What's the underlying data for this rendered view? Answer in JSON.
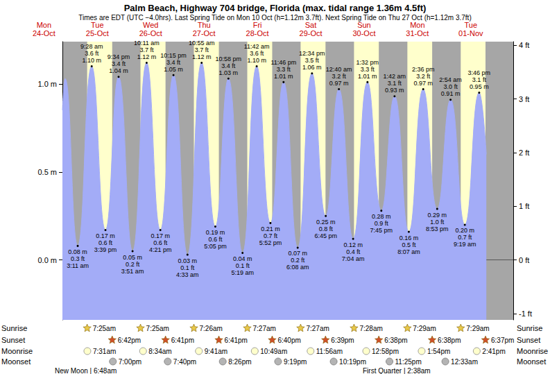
{
  "chart_data": {
    "type": "area",
    "title": "Palm Beach, Highway 704 bridge, Florida (max. tidal range 1.36m 4.5ft)",
    "subtitle": "Times are EDT (UTC −4.0hrs). Last Spring Tide on Mon 10 Oct (h=1.12m 3.7ft). Next Spring Tide on Thu 27 Oct (h=1.12m 3.7ft)",
    "day_labels": [
      "Mon\n24-Oct",
      "Tue\n25-Oct",
      "Wed\n26-Oct",
      "Thu\n27-Oct",
      "Fri\n28-Oct",
      "Sat\n29-Oct",
      "Sun\n30-Oct",
      "Mon\n31-Oct",
      "Tue\n01-Nov"
    ],
    "color": "#a3acf7",
    "x": [
      20.3,
      21.5,
      27.18,
      33.47,
      39.65,
      45.57,
      51.85,
      58.18,
      64.35,
      70.25,
      76.55,
      82.92,
      89.08,
      94.97,
      101.32,
      107.7,
      113.87,
      119.77,
      126.13,
      132.57,
      138.75,
      144.67,
      151.07,
      157.53,
      163.75,
      169.7,
      176.12,
      182.6,
      188.88,
      194.9,
      201.32,
      207.77,
      211.0
    ],
    "values": [
      0.85,
      1.03,
      0.08,
      1.1,
      0.17,
      1.04,
      0.05,
      1.12,
      0.17,
      1.05,
      0.03,
      1.12,
      0.19,
      1.03,
      0.04,
      1.1,
      0.21,
      1.01,
      0.07,
      1.06,
      0.25,
      0.97,
      0.12,
      1.01,
      0.28,
      0.93,
      0.16,
      0.97,
      0.29,
      0.91,
      0.2,
      0.95,
      0.6
    ],
    "value_labels": [
      null,
      null,
      "0.08 m",
      "1.10 m",
      "0.17 m",
      "1.04 m",
      "0.05 m",
      "1.12 m",
      "0.17 m",
      "1.05 m",
      "0.03 m",
      "1.12 m",
      "0.19 m",
      "1.03 m",
      "0.04 m",
      "1.10 m",
      "0.21 m",
      "1.01 m",
      "0.07 m",
      "1.06 m",
      "0.25 m",
      "0.97 m",
      "0.12 m",
      "1.01 m",
      "0.28 m",
      "0.93 m",
      "0.16 m",
      "0.97 m",
      "0.29 m",
      "0.91 m",
      "0.20 m",
      "0.95 m",
      null
    ],
    "feet_labels": [
      null,
      null,
      "0.3 ft",
      "3.6 ft",
      "0.6 ft",
      "3.4 ft",
      "0.2 ft",
      "3.7 ft",
      "0.6 ft",
      "3.4 ft",
      "0.1 ft",
      "3.7 ft",
      "0.6 ft",
      "3.4 ft",
      "0.1 ft",
      "3.6 ft",
      "0.7 ft",
      "3.3 ft",
      "0.2 ft",
      "3.5 ft",
      "0.8 ft",
      "3.2 ft",
      "0.4 ft",
      "3.3 ft",
      "0.9 ft",
      "3.1 ft",
      "0.5 ft",
      "3.2 ft",
      "1.0 ft",
      "3.0 ft",
      "0.7 ft",
      "3.1 ft",
      null
    ],
    "time_labels": [
      null,
      null,
      "3:11 am",
      "9:28 am",
      "3:39 pm",
      "9:34 pm",
      "3:51 am",
      "10:11 am",
      "4:21 pm",
      "10:15 pm",
      "4:33 am",
      "10:55 am",
      "5:05 pm",
      "10:58 pm",
      "5:19 am",
      "11:42 am",
      "5:52 pm",
      "11:46 pm",
      "6:08 am",
      "12:34 pm",
      "6:45 pm",
      "12:40 am",
      "7:04 am",
      "1:32 pm",
      "7:45 pm",
      "1:42 am",
      "8:07 am",
      "2:36 pm",
      "8:53 pm",
      "2:54 am",
      "9:19 am",
      "3:46 pm",
      null
    ],
    "data_labels": true,
    "tick_labels": "y",
    "xlim": [
      20.3,
      223.1
    ],
    "ylim": [
      -0.34,
      1.24
    ],
    "yticks": [
      {
        "value": 0,
        "label": "0.0 m"
      },
      {
        "value": 0.5,
        "label": "0.5 m"
      },
      {
        "value": 1,
        "label": "1.0 m"
      }
    ],
    "y2lim": [
      -1.115,
      4.068
    ],
    "y2ticks": [
      {
        "value": -1,
        "label": "-1 ft"
      },
      {
        "value": 0,
        "label": "0 ft"
      },
      {
        "value": 1,
        "label": "1 ft"
      },
      {
        "value": 2,
        "label": "2 ft"
      },
      {
        "value": 3,
        "label": "3 ft"
      },
      {
        "value": 4,
        "label": "4 ft"
      }
    ],
    "sun_moon": [
      {
        "name": "Sunrise",
        "x": [
          31.42,
          55.42,
          79.43,
          103.45,
          127.45,
          151.47,
          175.48,
          199.48
        ],
        "labels": [
          "7:25am",
          "7:25am",
          "7:26am",
          "7:27am",
          "7:27am",
          "7:28am",
          "7:29am",
          "7:29am"
        ]
      },
      {
        "name": "Sunset",
        "x": [
          42.7,
          66.68,
          90.68,
          114.67,
          138.65,
          162.63,
          186.63,
          210.62
        ],
        "labels": [
          "6:42pm",
          "6:41pm",
          "6:41pm",
          "6:40pm",
          "6:39pm",
          "6:38pm",
          "6:38pm",
          "6:37pm"
        ]
      },
      {
        "name": "Moonrise",
        "x": [
          31.52,
          56.57,
          81.68,
          106.82,
          131.93,
          156.97,
          181.9,
          206.68
        ],
        "labels": [
          "7:31am",
          "8:34am",
          "9:41am",
          "10:49am",
          "11:56am",
          "12:58pm",
          "1:54pm",
          "2:41pm"
        ]
      },
      {
        "name": "Moonset",
        "x": [
          43.0,
          67.67,
          92.43,
          117.32,
          142.32,
          167.42,
          192.55
        ],
        "labels": [
          "7:00pm",
          "7:40pm",
          "8:26pm",
          "9:19pm",
          "10:19pm",
          "11:25pm",
          "12:33am"
        ]
      }
    ],
    "moon_phases": [
      {
        "label": "New Moon | 6:48am",
        "x": 30.8
      },
      {
        "label": "First Quarter | 2:38am",
        "x": 170.63
      }
    ]
  }
}
